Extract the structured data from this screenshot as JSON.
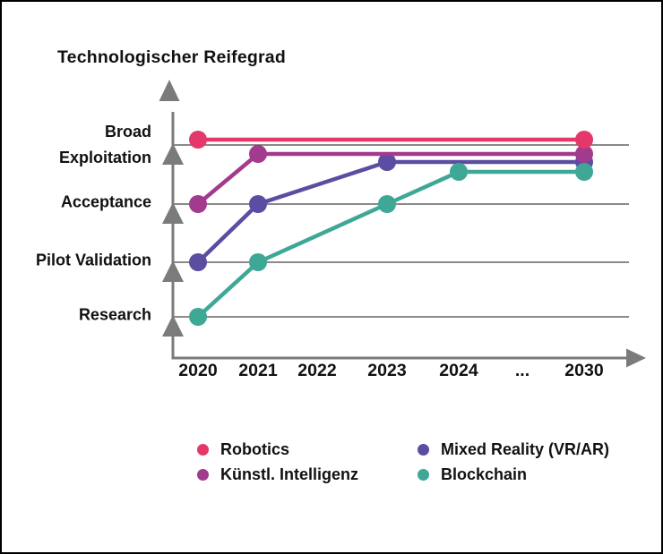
{
  "page": {
    "background": "#ffffff",
    "border_color": "#000000"
  },
  "chart_data": {
    "type": "line",
    "title": "Technologischer Reifegrad",
    "xlabel": "",
    "ylabel": "Technologischer Reifegrad",
    "x_categories": [
      "2020",
      "2021",
      "2022",
      "2023",
      "2024",
      "...",
      "2030"
    ],
    "y_levels": [
      "Research",
      "Pilot Validation",
      "Acceptance",
      "Broad Exploitation"
    ],
    "grid": true,
    "legend_position": "bottom",
    "axis_color": "#7b7b7b",
    "gridline_color": "#454545",
    "text_color": "#111111",
    "series": [
      {
        "name": "Robotics",
        "color": "#e5386a",
        "points": [
          [
            "2020",
            "Broad Exploitation"
          ],
          [
            "2030",
            "Broad Exploitation"
          ]
        ]
      },
      {
        "name": "Künstl. Intelligenz",
        "color": "#a23a8e",
        "points": [
          [
            "2020",
            "Acceptance"
          ],
          [
            "2021",
            "Broad Exploitation"
          ],
          [
            "2030",
            "Broad Exploitation"
          ]
        ]
      },
      {
        "name": "Mixed Reality (VR/AR)",
        "color": "#5a4da2",
        "points": [
          [
            "2020",
            "Pilot Validation"
          ],
          [
            "2021",
            "Acceptance"
          ],
          [
            "2023",
            "Broad Exploitation"
          ],
          [
            "2030",
            "Broad Exploitation"
          ]
        ]
      },
      {
        "name": "Blockchain",
        "color": "#3ea795",
        "points": [
          [
            "2020",
            "Research"
          ],
          [
            "2021",
            "Pilot Validation"
          ],
          [
            "2023",
            "Acceptance"
          ],
          [
            "2024",
            "Broad Exploitation"
          ],
          [
            "2030",
            "Broad Exploitation"
          ]
        ]
      }
    ]
  }
}
